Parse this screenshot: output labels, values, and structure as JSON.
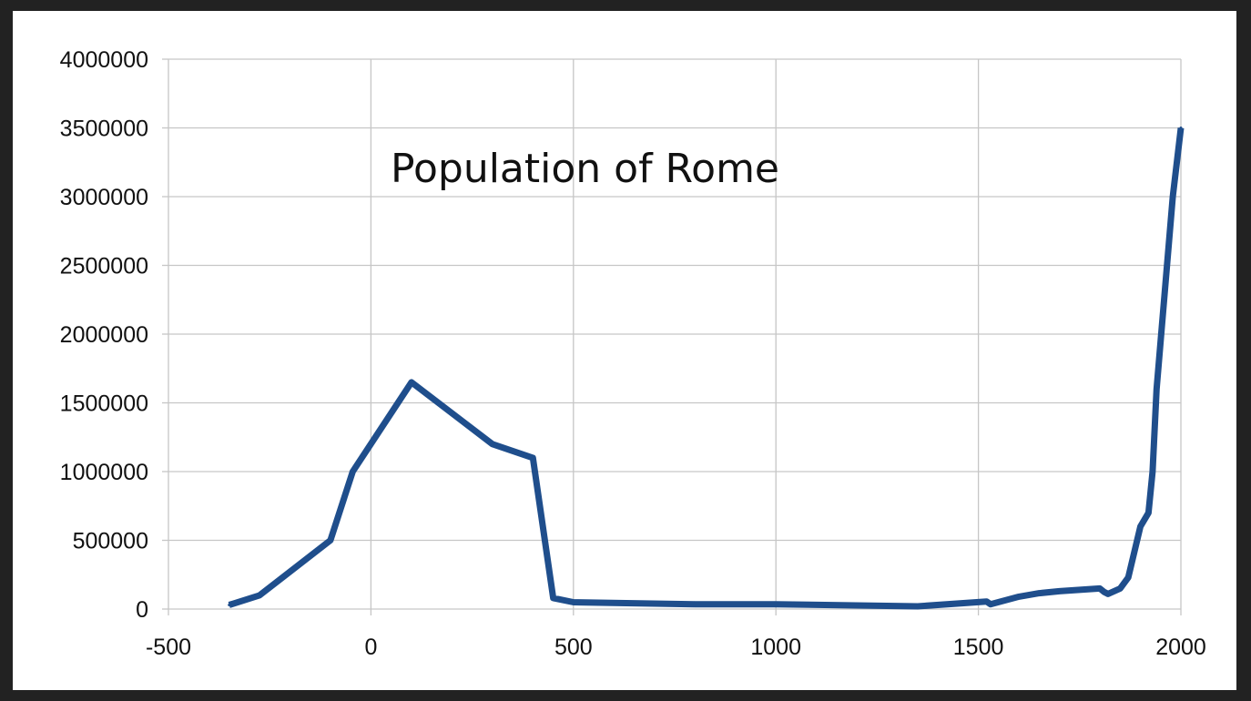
{
  "chart_data": {
    "type": "line",
    "title": "Population of Rome",
    "xlabel": "",
    "ylabel": "",
    "xlim": [
      -500,
      2000
    ],
    "ylim": [
      0,
      4000000
    ],
    "x_ticks": [
      "-500",
      "0",
      "500",
      "1000",
      "1500",
      "2000"
    ],
    "y_ticks": [
      "0",
      "500000",
      "1000000",
      "1500000",
      "2000000",
      "2500000",
      "3000000",
      "3500000",
      "4000000"
    ],
    "grid": true,
    "legend": "none",
    "series_color": "#1f4e8c",
    "series": [
      {
        "x": [
          -350,
          -275,
          -100,
          -45,
          100,
          300,
          400,
          450,
          500,
          800,
          1000,
          1350,
          1520,
          1530,
          1600,
          1650,
          1700,
          1800,
          1810,
          1820,
          1850,
          1870,
          1900,
          1920,
          1930,
          1940,
          1980,
          2000
        ],
        "y": [
          30000,
          100000,
          500000,
          1000000,
          1650000,
          1200000,
          1100000,
          80000,
          50000,
          35000,
          35000,
          20000,
          55000,
          35000,
          90000,
          115000,
          130000,
          150000,
          125000,
          110000,
          150000,
          230000,
          600000,
          700000,
          1000000,
          1600000,
          3000000,
          3500000
        ]
      }
    ]
  }
}
